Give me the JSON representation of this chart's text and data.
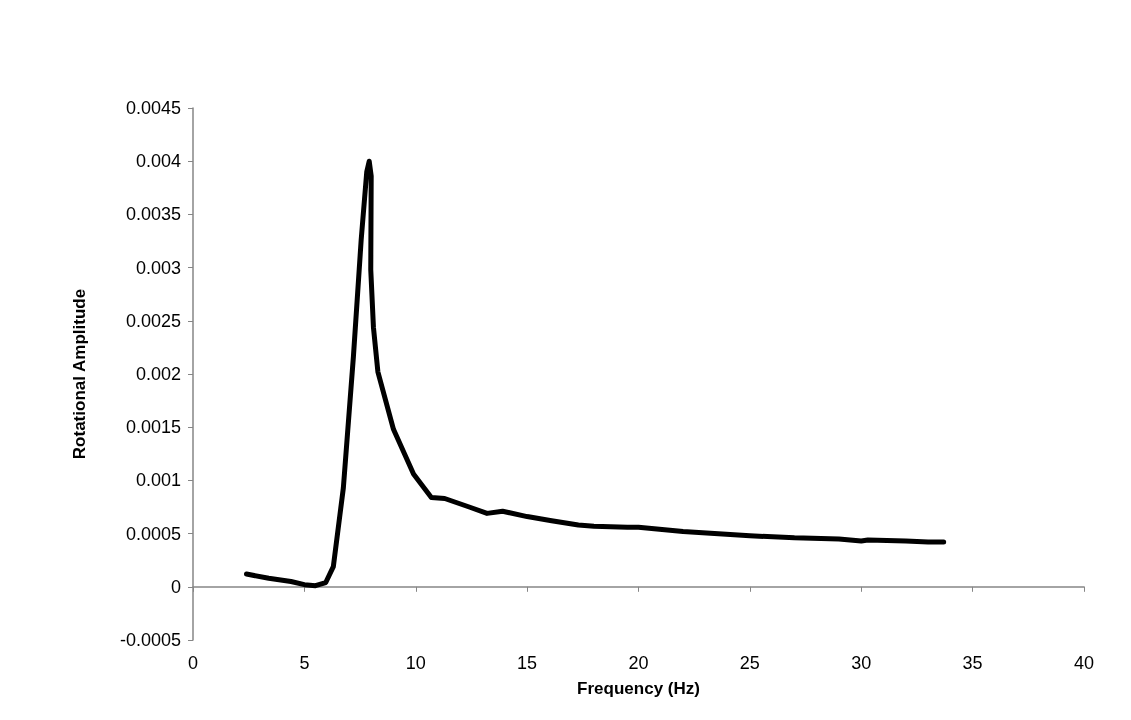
{
  "chart_data": {
    "type": "line",
    "xlabel": "Frequency (Hz)",
    "ylabel": "Rotational Amplitude",
    "xlim": [
      0,
      40
    ],
    "xticks": [
      0,
      5,
      10,
      15,
      20,
      25,
      30,
      35,
      40
    ],
    "ylim": [
      -0.0005,
      0.0045
    ],
    "yticks": [
      -0.0005,
      0,
      0.0005,
      0.001,
      0.0015,
      0.002,
      0.0025,
      0.003,
      0.0035,
      0.004,
      0.0045
    ],
    "marker": "none",
    "line_style": "solid",
    "series": [
      {
        "color": "#000000",
        "x": [
          2.4,
          3.4,
          4.4,
          5.0,
          5.5,
          5.96,
          6.3,
          6.75,
          7.2,
          7.55,
          7.8,
          7.91,
          8.0,
          7.98,
          8.1,
          8.3,
          9.0,
          9.9,
          10.7,
          11.3,
          12.4,
          13.2,
          13.9,
          15.0,
          16.1,
          17.3,
          18.0,
          19.5,
          20.0,
          22.0,
          25.0,
          27.0,
          29.0,
          30.0,
          30.3,
          32.0,
          33.0,
          33.7
        ],
        "values": [
          0.00012,
          8e-05,
          5e-05,
          2e-05,
          1e-05,
          4e-05,
          0.00019,
          0.00093,
          0.00216,
          0.00326,
          0.0039,
          0.004,
          0.00386,
          0.00298,
          0.00244,
          0.00202,
          0.00148,
          0.00106,
          0.00084,
          0.00083,
          0.00075,
          0.00069,
          0.00071,
          0.00066,
          0.00062,
          0.00058,
          0.00057,
          0.00056,
          0.00056,
          0.00052,
          0.00048,
          0.00046,
          0.00045,
          0.00043,
          0.00044,
          0.00043,
          0.00042,
          0.00042
        ]
      }
    ]
  }
}
